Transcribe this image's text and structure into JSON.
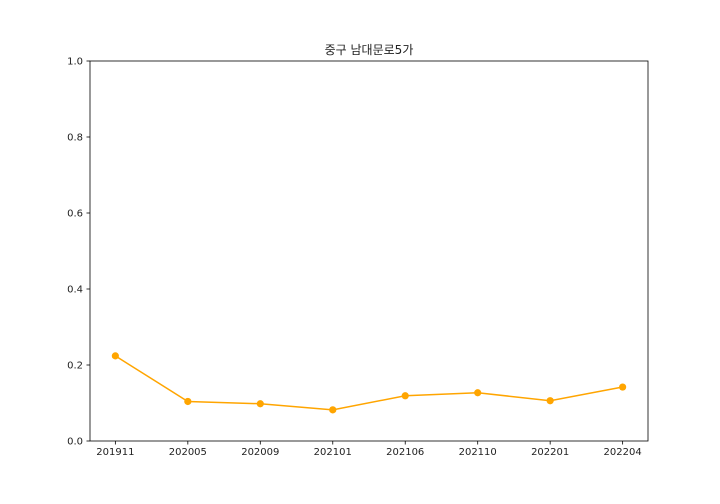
{
  "chart_data": {
    "type": "line",
    "title": "중구 남대문로5가",
    "xlabel": "",
    "ylabel": "",
    "categories": [
      "201911",
      "202005",
      "202009",
      "202101",
      "202106",
      "202110",
      "202201",
      "202204"
    ],
    "series": [
      {
        "values": [
          0.224,
          0.104,
          0.098,
          0.082,
          0.119,
          0.127,
          0.106,
          0.142
        ]
      }
    ],
    "ylim": [
      0,
      1.0
    ],
    "yticks": [
      "0.0",
      "0.2",
      "0.4",
      "0.6",
      "0.8",
      "1.0"
    ],
    "grid": false,
    "legend": "none",
    "line_color": "#FFA500"
  }
}
